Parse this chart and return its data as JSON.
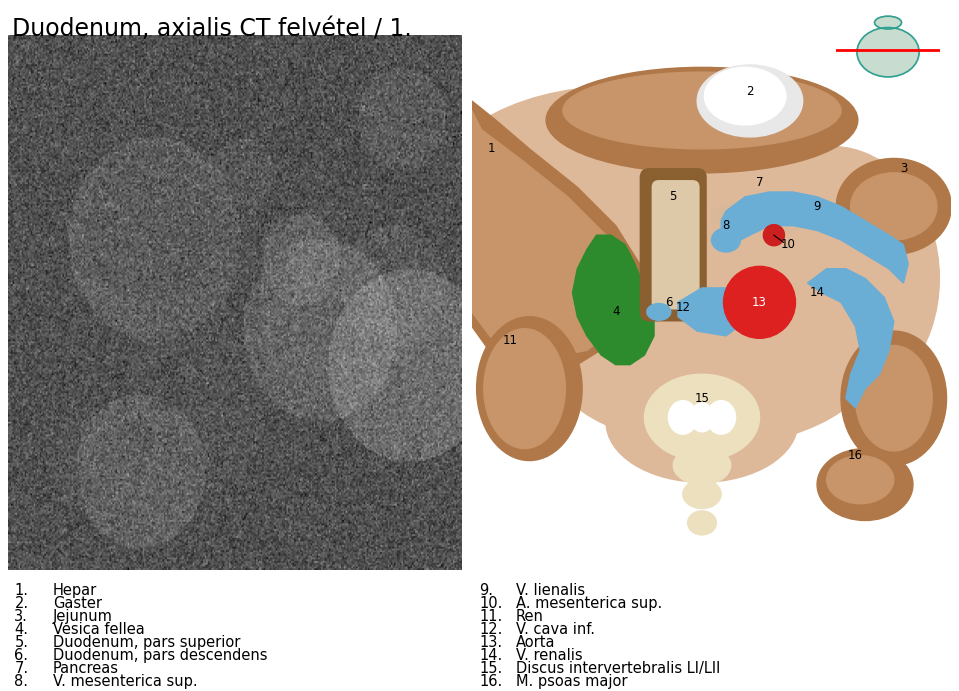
{
  "title": "Duodenum, axialis CT felvétel / 1.",
  "title_fontsize": 17,
  "bg_color": "#ffffff",
  "diagram_bg": "#c8956a",
  "skin_light": "#ddb899",
  "skin_dark": "#b07848",
  "skin_medium": "#c8956a",
  "green_color": "#2d8b2d",
  "blue_color": "#6aadd5",
  "red_color": "#dd2020",
  "red_small": "#cc2020",
  "duo_edge": "#8b6030",
  "duo_fill": "#ddc8a8",
  "vertebra_color": "#ece0be",
  "white_color": "#ffffff",
  "labels_left": [
    [
      "1.",
      "Hepar"
    ],
    [
      "2.",
      "Gaster"
    ],
    [
      "3.",
      "Jejunum"
    ],
    [
      "4.",
      "Vesica fellea"
    ],
    [
      "5.",
      "Duodenum, pars superior"
    ],
    [
      "6.",
      "Duodenum, pars descendens"
    ],
    [
      "7.",
      "Pancreas"
    ],
    [
      "8.",
      "V. mesenterica sup."
    ]
  ],
  "labels_right": [
    [
      "9.",
      "V. lienalis"
    ],
    [
      "10.",
      "A. mesenterica sup."
    ],
    [
      "11.",
      "Ren"
    ],
    [
      "12.",
      "V. cava inf."
    ],
    [
      "13.",
      "Aorta"
    ],
    [
      "14.",
      "V. renalis"
    ],
    [
      "15.",
      "Discus intervertebralis LI/LII"
    ],
    [
      "16.",
      "M. psoas major"
    ]
  ],
  "label_fontsize": 10.5
}
